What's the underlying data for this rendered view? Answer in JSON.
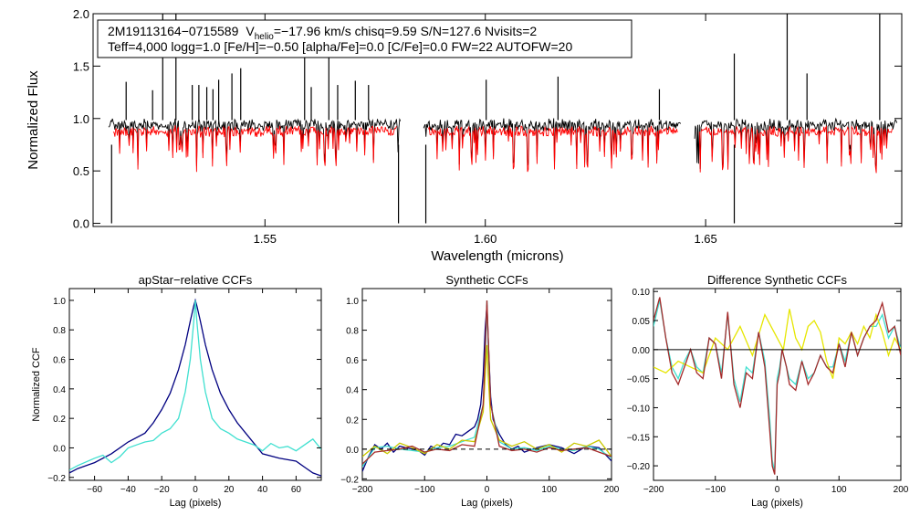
{
  "info_box": {
    "star_id": "2M19113164−0715589",
    "v_prefix": "V",
    "v_sub": "helio",
    "line1_rest": "=−17.96 km/s  chisq=9.59  S/N=127.6  Nvisits=2",
    "line2": "Teff=4,000 logg=1.0 [Fe/H]=−0.50 [alpha/Fe]=0.0 [C/Fe]=0.0 FW=22 AUTOFW=20"
  },
  "chart_data": [
    {
      "id": "spectrum",
      "type": "line",
      "title": "",
      "xlabel": "Wavelength (microns)",
      "ylabel": "Normalized Flux",
      "xlim": [
        1.511,
        1.6945
      ],
      "ylim": [
        -0.03,
        2.0
      ],
      "xticks": [
        1.55,
        1.6,
        1.65
      ],
      "xtick_labels": [
        "1.55",
        "1.60",
        "1.65"
      ],
      "yticks": [
        0.0,
        0.5,
        1.0,
        1.5,
        2.0
      ],
      "ytick_labels": [
        "0.0",
        "0.5",
        "1.0",
        "1.5",
        "2.0"
      ],
      "chips": [
        [
          1.5145,
          1.5808
        ],
        [
          1.586,
          1.6445
        ],
        [
          1.6475,
          1.6935
        ]
      ],
      "series": [
        {
          "name": "observed",
          "color": "#000000",
          "baseline": 0.985,
          "emission_spikes": [
            [
              1.5185,
              1.35
            ],
            [
              1.5245,
              1.27
            ],
            [
              1.5268,
              2.0
            ],
            [
              1.5298,
              2.0
            ],
            [
              1.5335,
              1.32
            ],
            [
              1.535,
              1.32
            ],
            [
              1.5368,
              1.3
            ],
            [
              1.5382,
              1.28
            ],
            [
              1.5395,
              1.37
            ],
            [
              1.5425,
              1.43
            ],
            [
              1.5445,
              1.48
            ],
            [
              1.559,
              1.62
            ],
            [
              1.5605,
              1.3
            ],
            [
              1.5645,
              1.72
            ],
            [
              1.5665,
              1.32
            ],
            [
              1.5705,
              1.36
            ],
            [
              1.5735,
              1.32
            ],
            [
              1.6002,
              1.37
            ],
            [
              1.6165,
              1.4
            ],
            [
              1.6395,
              1.28
            ],
            [
              1.6685,
              2.0
            ],
            [
              1.673,
              1.43
            ],
            [
              1.6895,
              2.0
            ],
            [
              1.6565,
              1.62
            ]
          ],
          "absorption_drops": [
            [
              1.5152,
              0.0
            ],
            [
              1.5803,
              0.0
            ],
            [
              1.5865,
              0.0
            ],
            [
              1.6565,
              0.0
            ]
          ]
        },
        {
          "name": "model",
          "color": "#ff0000",
          "baseline": 0.92,
          "spectral_range": [
            1.5152,
            1.6925
          ]
        }
      ]
    },
    {
      "id": "apstar_ccf",
      "type": "line",
      "title": "apStar−relative CCFs",
      "xlabel": "Lag (pixels)",
      "ylabel": "Normalized CCF",
      "xlim": [
        -75,
        75
      ],
      "ylim": [
        -0.22,
        1.08
      ],
      "xticks": [
        -60,
        -40,
        -20,
        0,
        20,
        40,
        60
      ],
      "xtick_labels": [
        "−60",
        "−40",
        "−20",
        "0",
        "20",
        "40",
        "60"
      ],
      "yticks": [
        -0.2,
        0.0,
        0.2,
        0.4,
        0.6,
        0.8,
        1.0
      ],
      "ytick_labels": [
        "−0.2",
        "0.0",
        "0.2",
        "0.4",
        "0.6",
        "0.8",
        "1.0"
      ],
      "series": [
        {
          "name": "wide",
          "color": "#000080",
          "x": [
            -75,
            -70,
            -60,
            -50,
            -40,
            -30,
            -25,
            -20,
            -15,
            -10,
            -6,
            -3,
            -1,
            0,
            1,
            3,
            6,
            10,
            15,
            20,
            25,
            30,
            40,
            50,
            60,
            65,
            70,
            75
          ],
          "y": [
            -0.17,
            -0.14,
            -0.1,
            -0.04,
            0.04,
            0.1,
            0.17,
            0.26,
            0.37,
            0.53,
            0.7,
            0.86,
            0.96,
            1.0,
            0.96,
            0.86,
            0.7,
            0.53,
            0.37,
            0.26,
            0.17,
            0.1,
            -0.04,
            -0.07,
            -0.09,
            -0.13,
            -0.17,
            -0.19
          ]
        },
        {
          "name": "narrow",
          "color": "#40e0d0",
          "x": [
            -75,
            -70,
            -60,
            -55,
            -50,
            -45,
            -40,
            -35,
            -30,
            -25,
            -20,
            -15,
            -10,
            -6,
            -3,
            -1,
            0,
            1,
            3,
            6,
            10,
            15,
            20,
            25,
            30,
            35,
            40,
            45,
            50,
            55,
            60,
            65,
            70,
            75
          ],
          "y": [
            -0.15,
            -0.12,
            -0.07,
            -0.05,
            -0.1,
            -0.06,
            0.0,
            0.02,
            0.04,
            0.05,
            0.1,
            0.13,
            0.2,
            0.38,
            0.6,
            0.85,
            1.0,
            0.85,
            0.6,
            0.38,
            0.2,
            0.13,
            0.1,
            0.06,
            0.04,
            0.02,
            -0.02,
            0.03,
            0.0,
            0.01,
            -0.02,
            0.02,
            0.06,
            -0.01
          ]
        }
      ]
    },
    {
      "id": "synthetic_ccf",
      "type": "line",
      "title": "Synthetic CCFs",
      "xlabel": "Lag (pixels)",
      "ylabel": "",
      "xlim": [
        -200,
        200
      ],
      "ylim": [
        -0.21,
        1.08
      ],
      "xticks": [
        -200,
        -100,
        0,
        100,
        200
      ],
      "xtick_labels": [
        "−200",
        "−100",
        "0",
        "100",
        "200"
      ],
      "yticks": [
        -0.2,
        0.0,
        0.2,
        0.4,
        0.6,
        0.8,
        1.0
      ],
      "ytick_labels": [
        "−0.2",
        "0.0",
        "0.2",
        "0.4",
        "0.6",
        "0.8",
        "1.0"
      ],
      "zero_line": true,
      "series": [
        {
          "name": "combined",
          "color": "#000080",
          "x": [
            -200,
            -190,
            -180,
            -170,
            -160,
            -150,
            -140,
            -130,
            -120,
            -110,
            -100,
            -90,
            -80,
            -70,
            -60,
            -50,
            -40,
            -30,
            -20,
            -15,
            -10,
            -6,
            -3,
            0,
            3,
            6,
            10,
            15,
            20,
            30,
            40,
            50,
            60,
            80,
            100,
            120,
            140,
            160,
            180,
            200
          ],
          "y": [
            -0.15,
            -0.05,
            0.03,
            0.0,
            0.04,
            -0.02,
            0.02,
            0.01,
            0.0,
            -0.01,
            -0.04,
            0.02,
            0.0,
            0.04,
            0.03,
            0.1,
            0.09,
            0.12,
            0.15,
            0.2,
            0.3,
            0.5,
            0.8,
            0.97,
            0.65,
            0.35,
            0.2,
            0.15,
            0.1,
            0.03,
            0.0,
            0.02,
            -0.02,
            0.01,
            0.03,
            0.01,
            -0.03,
            0.02,
            0.01,
            -0.08
          ]
        },
        {
          "name": "synth1",
          "color": "#40e0d0",
          "x": [
            -200,
            -180,
            -160,
            -140,
            -120,
            -100,
            -80,
            -60,
            -40,
            -20,
            -6,
            -2,
            0,
            2,
            6,
            20,
            40,
            60,
            80,
            100,
            120,
            140,
            160,
            180,
            200
          ],
          "y": [
            -0.12,
            0.01,
            0.02,
            0.0,
            -0.01,
            -0.02,
            0.01,
            0.02,
            0.05,
            0.08,
            0.3,
            0.7,
            1.0,
            0.7,
            0.3,
            0.05,
            0.0,
            0.01,
            -0.01,
            0.02,
            0.0,
            -0.01,
            0.02,
            0.0,
            -0.06
          ]
        },
        {
          "name": "synth2",
          "color": "#c8c800",
          "x": [
            -200,
            -180,
            -160,
            -140,
            -120,
            -100,
            -80,
            -60,
            -40,
            -20,
            -6,
            -2,
            0,
            2,
            6,
            20,
            40,
            60,
            80,
            100,
            120,
            140,
            160,
            180,
            200
          ],
          "y": [
            -0.05,
            0.02,
            -0.03,
            0.04,
            0.01,
            -0.03,
            0.03,
            0.0,
            0.06,
            0.05,
            0.25,
            0.55,
            0.7,
            0.5,
            0.2,
            0.06,
            0.02,
            0.05,
            0.0,
            0.03,
            -0.02,
            0.04,
            0.02,
            0.06,
            -0.05
          ]
        },
        {
          "name": "synth3",
          "color": "#a52a2a",
          "x": [
            -200,
            -180,
            -160,
            -140,
            -120,
            -100,
            -80,
            -60,
            -40,
            -20,
            -6,
            -2,
            0,
            2,
            6,
            20,
            40,
            60,
            80,
            100,
            120,
            140,
            160,
            180,
            200
          ],
          "y": [
            -0.1,
            -0.02,
            -0.01,
            0.0,
            0.02,
            -0.02,
            0.0,
            -0.01,
            0.03,
            0.02,
            0.3,
            0.75,
            1.0,
            0.75,
            0.3,
            0.02,
            -0.01,
            0.0,
            -0.02,
            0.01,
            -0.01,
            0.0,
            0.01,
            -0.02,
            -0.05
          ]
        }
      ]
    },
    {
      "id": "diff_ccf",
      "type": "line",
      "title": "Difference Synthetic CCFs",
      "xlabel": "Lag (pixels)",
      "ylabel": "",
      "xlim": [
        -200,
        200
      ],
      "ylim": [
        -0.225,
        0.105
      ],
      "xticks": [
        -200,
        -100,
        0,
        100,
        200
      ],
      "xtick_labels": [
        "−200",
        "−100",
        "0",
        "100",
        "200"
      ],
      "yticks": [
        -0.2,
        -0.15,
        -0.1,
        -0.05,
        0.0,
        0.05,
        0.1
      ],
      "ytick_labels": [
        "−0.20",
        "−0.15",
        "−0.10",
        "−0.05",
        "0.00",
        "0.05",
        "0.10"
      ],
      "zero_line": true,
      "series": [
        {
          "name": "diff1",
          "color": "#40e0d0",
          "x": [
            -200,
            -190,
            -180,
            -170,
            -160,
            -150,
            -140,
            -130,
            -120,
            -110,
            -100,
            -90,
            -80,
            -70,
            -60,
            -50,
            -40,
            -30,
            -20,
            -12,
            -8,
            -4,
            0,
            4,
            8,
            15,
            20,
            30,
            40,
            50,
            60,
            70,
            80,
            90,
            100,
            110,
            120,
            130,
            140,
            150,
            160,
            170,
            180,
            190,
            200
          ],
          "y": [
            0.04,
            0.085,
            0.02,
            -0.03,
            -0.05,
            -0.02,
            0.0,
            -0.03,
            -0.04,
            0.02,
            0.01,
            -0.04,
            0.06,
            -0.05,
            -0.09,
            -0.03,
            -0.04,
            0.03,
            -0.02,
            -0.12,
            -0.19,
            -0.21,
            -0.05,
            -0.03,
            0.0,
            -0.03,
            -0.05,
            -0.06,
            -0.02,
            -0.05,
            -0.04,
            -0.01,
            -0.03,
            -0.03,
            0.01,
            -0.02,
            0.03,
            -0.01,
            0.02,
            0.04,
            0.04,
            0.06,
            0.02,
            0.04,
            0.0
          ]
        },
        {
          "name": "diff2",
          "color": "#e6e600",
          "x": [
            -200,
            -180,
            -160,
            -140,
            -120,
            -100,
            -80,
            -60,
            -40,
            -20,
            0,
            10,
            20,
            30,
            40,
            50,
            60,
            70,
            80,
            90,
            100,
            110,
            120,
            130,
            140,
            150,
            160,
            170,
            180,
            190,
            200
          ],
          "y": [
            -0.03,
            -0.04,
            -0.02,
            -0.03,
            -0.04,
            0.02,
            0.0,
            0.04,
            -0.01,
            0.06,
            0.02,
            0.0,
            0.07,
            0.02,
            0.0,
            0.04,
            0.05,
            0.03,
            -0.02,
            -0.05,
            0.02,
            0.01,
            0.03,
            0.01,
            0.04,
            0.02,
            0.06,
            0.03,
            -0.01,
            0.02,
            0.0
          ]
        },
        {
          "name": "diff3",
          "color": "#a52a2a",
          "x": [
            -200,
            -190,
            -180,
            -170,
            -160,
            -150,
            -140,
            -130,
            -120,
            -110,
            -100,
            -90,
            -80,
            -70,
            -60,
            -50,
            -40,
            -30,
            -20,
            -12,
            -8,
            -4,
            0,
            4,
            8,
            15,
            20,
            30,
            40,
            50,
            60,
            70,
            80,
            90,
            100,
            110,
            120,
            130,
            140,
            150,
            160,
            170,
            180,
            190,
            200
          ],
          "y": [
            0.05,
            0.09,
            0.02,
            -0.04,
            -0.06,
            -0.03,
            0.0,
            -0.04,
            -0.05,
            0.02,
            0.01,
            -0.05,
            0.065,
            -0.06,
            -0.1,
            -0.04,
            -0.05,
            0.03,
            -0.03,
            -0.14,
            -0.2,
            -0.215,
            -0.06,
            -0.04,
            0.0,
            -0.03,
            -0.06,
            -0.07,
            -0.02,
            -0.06,
            -0.04,
            -0.01,
            -0.03,
            -0.04,
            0.01,
            -0.03,
            0.03,
            -0.01,
            0.02,
            0.04,
            0.05,
            0.08,
            0.03,
            0.04,
            -0.01
          ]
        }
      ]
    }
  ]
}
